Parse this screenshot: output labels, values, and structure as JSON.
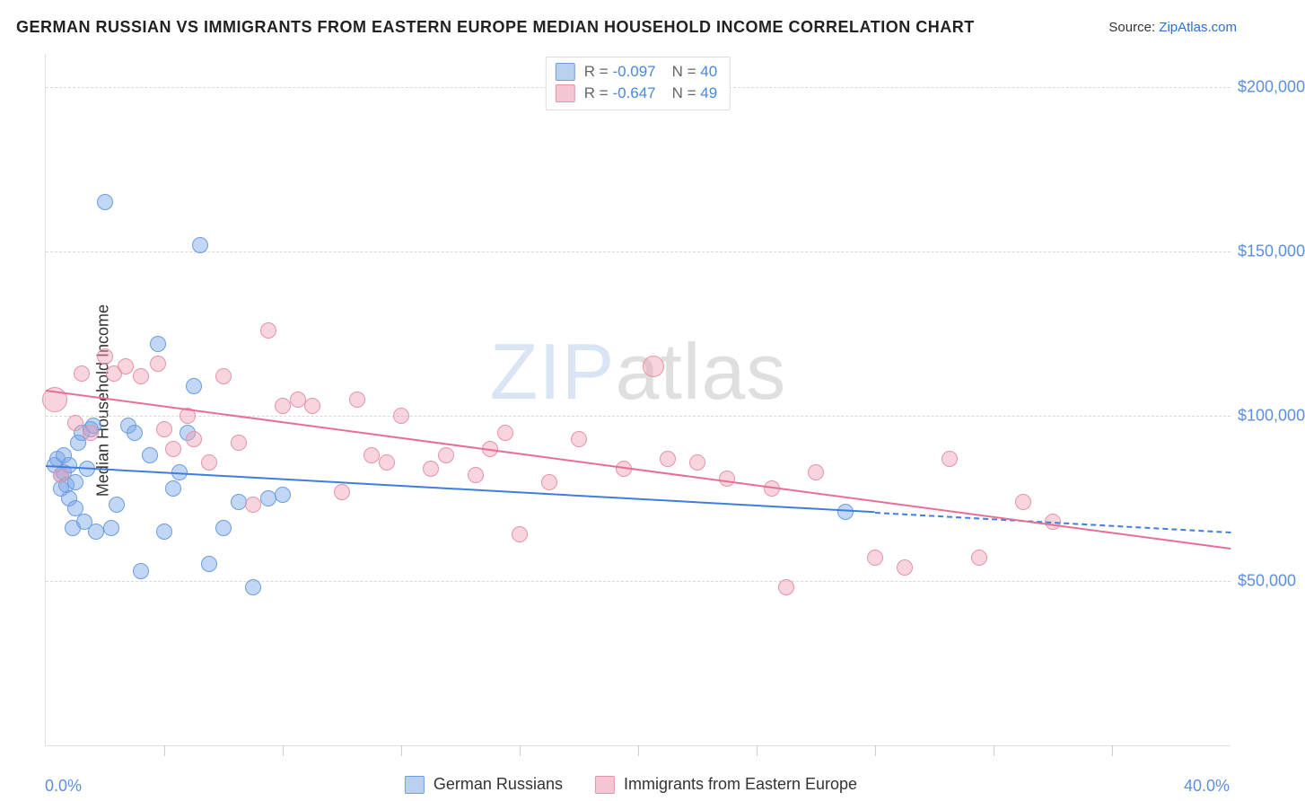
{
  "title": "GERMAN RUSSIAN VS IMMIGRANTS FROM EASTERN EUROPE MEDIAN HOUSEHOLD INCOME CORRELATION CHART",
  "source_label": "Source: ",
  "source_link_text": "ZipAtlas.com",
  "yaxis_title": "Median Household Income",
  "watermark": {
    "part1": "ZIP",
    "part2": "atlas"
  },
  "chart": {
    "type": "scatter",
    "background_color": "#ffffff",
    "grid_color": "#d8d8d8",
    "axis_color": "#e0e0e0",
    "xlim": [
      0,
      40
    ],
    "ylim": [
      0,
      210000
    ],
    "ytick_step": 50000,
    "yticks": [
      50000,
      100000,
      150000,
      200000
    ],
    "ytick_labels": [
      "$50,000",
      "$100,000",
      "$150,000",
      "$200,000"
    ],
    "xaxis_label_min": "0.0%",
    "xaxis_label_max": "40.0%",
    "xticks_minor": [
      4,
      8,
      12,
      16,
      20,
      24,
      28,
      32,
      36
    ],
    "title_fontsize": 18,
    "axis_label_fontsize": 18,
    "tick_label_color": "#5b8fe3",
    "marker_radius": 9,
    "marker_opacity": 0.55,
    "series": [
      {
        "name": "German Russians",
        "color_fill": "rgba(120,167,232,0.45)",
        "color_stroke": "#6b9de0",
        "swatch_fill": "#b9d0ef",
        "swatch_stroke": "#6b9de0",
        "trend_color": "#3f7ee0",
        "stats": {
          "R": "-0.097",
          "N": "40"
        },
        "trend": {
          "x1": 0,
          "y1": 85000,
          "x2": 28,
          "y2": 71000,
          "x2_dash": 40,
          "y2_dash": 65000
        },
        "points": [
          [
            0.3,
            85000
          ],
          [
            0.4,
            87000
          ],
          [
            0.5,
            82000
          ],
          [
            0.5,
            78000
          ],
          [
            0.6,
            88000
          ],
          [
            0.6,
            83000
          ],
          [
            0.7,
            79000
          ],
          [
            0.8,
            85000
          ],
          [
            0.8,
            75000
          ],
          [
            0.9,
            66000
          ],
          [
            1.0,
            72000
          ],
          [
            1.0,
            80000
          ],
          [
            1.1,
            92000
          ],
          [
            1.2,
            95000
          ],
          [
            1.3,
            68000
          ],
          [
            1.4,
            84000
          ],
          [
            1.5,
            96000
          ],
          [
            1.6,
            97000
          ],
          [
            1.7,
            65000
          ],
          [
            2.0,
            165000
          ],
          [
            2.2,
            66000
          ],
          [
            2.4,
            73000
          ],
          [
            2.8,
            97000
          ],
          [
            3.0,
            95000
          ],
          [
            3.2,
            53000
          ],
          [
            3.5,
            88000
          ],
          [
            3.8,
            122000
          ],
          [
            4.0,
            65000
          ],
          [
            4.3,
            78000
          ],
          [
            4.5,
            83000
          ],
          [
            4.8,
            95000
          ],
          [
            5.0,
            109000
          ],
          [
            5.2,
            152000
          ],
          [
            5.5,
            55000
          ],
          [
            6.0,
            66000
          ],
          [
            6.5,
            74000
          ],
          [
            7.0,
            48000
          ],
          [
            7.5,
            75000
          ],
          [
            8.0,
            76000
          ],
          [
            27.0,
            71000
          ]
        ]
      },
      {
        "name": "Immigrants from Eastern Europe",
        "color_fill": "rgba(240,160,180,0.45)",
        "color_stroke": "#e494aa",
        "swatch_fill": "#f4c6d1",
        "swatch_stroke": "#e494aa",
        "trend_color": "#e86f93",
        "stats": {
          "R": "-0.647",
          "N": "49"
        },
        "trend": {
          "x1": 0,
          "y1": 108000,
          "x2": 40,
          "y2": 60000
        },
        "points": [
          [
            0.3,
            105000,
            14
          ],
          [
            0.5,
            82000
          ],
          [
            1.0,
            98000
          ],
          [
            1.2,
            113000
          ],
          [
            1.5,
            95000
          ],
          [
            2.0,
            118000
          ],
          [
            2.3,
            113000
          ],
          [
            2.7,
            115000
          ],
          [
            3.2,
            112000
          ],
          [
            3.8,
            116000
          ],
          [
            4.0,
            96000
          ],
          [
            4.3,
            90000
          ],
          [
            4.8,
            100000
          ],
          [
            5.0,
            93000
          ],
          [
            5.5,
            86000
          ],
          [
            6.0,
            112000
          ],
          [
            6.5,
            92000
          ],
          [
            7.0,
            73000
          ],
          [
            7.5,
            126000
          ],
          [
            8.0,
            103000
          ],
          [
            8.5,
            105000
          ],
          [
            9.0,
            103000
          ],
          [
            10.0,
            77000
          ],
          [
            10.5,
            105000
          ],
          [
            11.0,
            88000
          ],
          [
            11.5,
            86000
          ],
          [
            12.0,
            100000
          ],
          [
            13.0,
            84000
          ],
          [
            13.5,
            88000
          ],
          [
            14.5,
            82000
          ],
          [
            15.0,
            90000
          ],
          [
            15.5,
            95000
          ],
          [
            16.0,
            64000
          ],
          [
            17.0,
            80000
          ],
          [
            18.0,
            93000
          ],
          [
            19.5,
            84000
          ],
          [
            20.5,
            115000,
            12
          ],
          [
            21.0,
            87000
          ],
          [
            22.0,
            86000
          ],
          [
            23.0,
            81000
          ],
          [
            24.5,
            78000
          ],
          [
            25.0,
            48000
          ],
          [
            26.0,
            83000
          ],
          [
            28.0,
            57000
          ],
          [
            29.0,
            54000
          ],
          [
            30.5,
            87000
          ],
          [
            31.5,
            57000
          ],
          [
            33.0,
            74000
          ],
          [
            34.0,
            68000
          ]
        ]
      }
    ],
    "legend_bottom": [
      {
        "label": "German Russians",
        "swatch_fill": "#b9d0ef",
        "swatch_stroke": "#6b9de0"
      },
      {
        "label": "Immigrants from Eastern Europe",
        "swatch_fill": "#f4c6d1",
        "swatch_stroke": "#e494aa"
      }
    ]
  }
}
